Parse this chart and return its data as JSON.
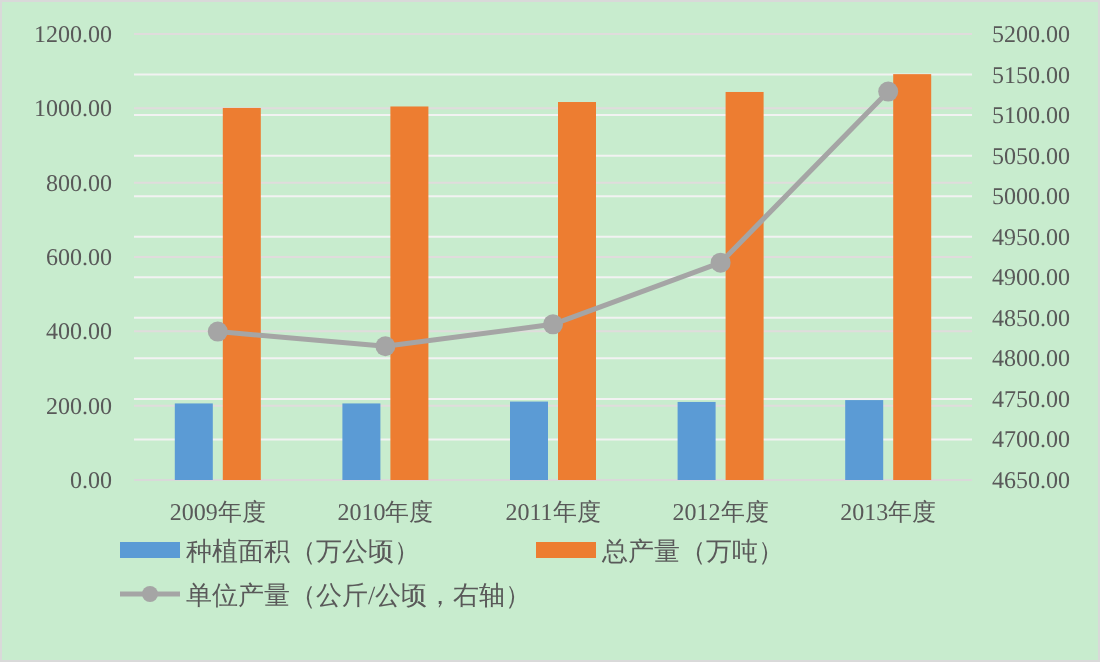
{
  "chart_data": {
    "type": "bar",
    "categories": [
      "2009年度",
      "2010年度",
      "2011年度",
      "2012年度",
      "2013年度"
    ],
    "series": [
      {
        "name": "种植面积（万公顷）",
        "color": "#5b9bd5",
        "values": [
          206,
          206,
          211,
          210,
          215
        ]
      },
      {
        "name": "总产量（万吨）",
        "color": "#ed7d31",
        "values": [
          1001,
          1005,
          1017,
          1044,
          1092
        ]
      },
      {
        "name": "单位产量（公斤/公顷，右轴）",
        "color": "#a5a5a5",
        "type": "line",
        "axis": "y2",
        "marker": "circle",
        "values": [
          4833,
          4815,
          4842,
          4918,
          5129
        ]
      }
    ],
    "ylim": [
      0,
      1200
    ],
    "yticks": [
      {
        "value": 0,
        "label": "0.00"
      },
      {
        "value": 200,
        "label": "200.00"
      },
      {
        "value": 400,
        "label": "400.00"
      },
      {
        "value": 600,
        "label": "600.00"
      },
      {
        "value": 800,
        "label": "800.00"
      },
      {
        "value": 1000,
        "label": "1000.00"
      },
      {
        "value": 1200,
        "label": "1200.00"
      }
    ],
    "y2lim": [
      4650,
      5200
    ],
    "y2ticks": [
      {
        "value": 4650,
        "label": "4650.00"
      },
      {
        "value": 4700,
        "label": "4700.00"
      },
      {
        "value": 4750,
        "label": "4750.00"
      },
      {
        "value": 4800,
        "label": "4800.00"
      },
      {
        "value": 4850,
        "label": "4850.00"
      },
      {
        "value": 4900,
        "label": "4900.00"
      },
      {
        "value": 4950,
        "label": "4950.00"
      },
      {
        "value": 5000,
        "label": "5000.00"
      },
      {
        "value": 5050,
        "label": "5050.00"
      },
      {
        "value": 5100,
        "label": "5100.00"
      },
      {
        "value": 5150,
        "label": "5150.00"
      },
      {
        "value": 5200,
        "label": "5200.00"
      }
    ],
    "grid": true,
    "legend": "bottom"
  }
}
